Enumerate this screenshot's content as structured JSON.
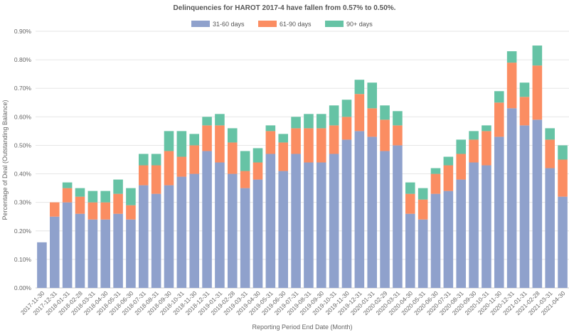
{
  "chart_data": {
    "type": "bar",
    "stacked": true,
    "title": "Delinquencies for HAROT 2017-4 have fallen from 0.57% to 0.50%.",
    "xlabel": "Reporting Period End Date (Month)",
    "ylabel": "Percentage of Deal (Outstanding Balance)",
    "ylim": [
      0,
      0.9
    ],
    "yticks": [
      "0.00%",
      "0.10%",
      "0.20%",
      "0.30%",
      "0.40%",
      "0.50%",
      "0.60%",
      "0.70%",
      "0.80%",
      "0.90%"
    ],
    "grid": true,
    "legend_position": "top-center",
    "categories": [
      "2017-11-30",
      "2017-12-31",
      "2018-01-31",
      "2018-02-28",
      "2018-03-31",
      "2018-04-30",
      "2018-05-31",
      "2018-06-30",
      "2018-07-31",
      "2018-08-31",
      "2018-09-30",
      "2018-10-31",
      "2018-11-30",
      "2018-12-31",
      "2019-01-31",
      "2019-02-28",
      "2019-03-31",
      "2019-04-30",
      "2019-05-31",
      "2019-06-30",
      "2019-07-31",
      "2019-08-31",
      "2019-09-30",
      "2019-10-31",
      "2019-11-30",
      "2019-12-31",
      "2020-01-31",
      "2020-02-29",
      "2020-03-31",
      "2020-04-30",
      "2020-05-31",
      "2020-06-30",
      "2020-07-31",
      "2020-08-31",
      "2020-09-30",
      "2020-10-31",
      "2020-11-30",
      "2020-12-31",
      "2021-01-31",
      "2021-02-28",
      "2021-03-31",
      "2021-04-30"
    ],
    "series": [
      {
        "name": "31-60 days",
        "color": "#8fa1cc",
        "values": [
          0.16,
          0.25,
          0.3,
          0.26,
          0.24,
          0.24,
          0.26,
          0.24,
          0.36,
          0.33,
          0.36,
          0.39,
          0.4,
          0.48,
          0.44,
          0.4,
          0.35,
          0.38,
          0.47,
          0.41,
          0.47,
          0.44,
          0.44,
          0.47,
          0.52,
          0.55,
          0.53,
          0.48,
          0.5,
          0.26,
          0.24,
          0.33,
          0.34,
          0.38,
          0.44,
          0.43,
          0.53,
          0.63,
          0.57,
          0.59,
          0.42,
          0.32
        ]
      },
      {
        "name": "61-90 days",
        "color": "#fb8d62",
        "values": [
          0.0,
          0.05,
          0.05,
          0.06,
          0.06,
          0.06,
          0.07,
          0.05,
          0.07,
          0.1,
          0.12,
          0.07,
          0.1,
          0.09,
          0.13,
          0.11,
          0.06,
          0.06,
          0.08,
          0.1,
          0.09,
          0.12,
          0.12,
          0.1,
          0.08,
          0.13,
          0.1,
          0.11,
          0.07,
          0.07,
          0.07,
          0.07,
          0.09,
          0.09,
          0.08,
          0.12,
          0.12,
          0.16,
          0.1,
          0.19,
          0.1,
          0.13
        ]
      },
      {
        "name": "90+ days",
        "color": "#66c3a5",
        "values": [
          0.0,
          0.0,
          0.02,
          0.03,
          0.04,
          0.04,
          0.05,
          0.06,
          0.04,
          0.04,
          0.07,
          0.09,
          0.04,
          0.03,
          0.04,
          0.05,
          0.07,
          0.05,
          0.02,
          0.03,
          0.04,
          0.05,
          0.05,
          0.07,
          0.06,
          0.05,
          0.09,
          0.05,
          0.05,
          0.04,
          0.04,
          0.02,
          0.03,
          0.05,
          0.03,
          0.02,
          0.04,
          0.04,
          0.05,
          0.07,
          0.04,
          0.05
        ]
      }
    ]
  }
}
